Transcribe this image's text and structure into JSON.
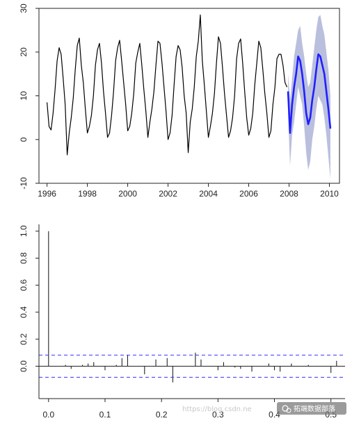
{
  "chart_data": [
    {
      "type": "line",
      "title": "",
      "xlabel": "",
      "ylabel": "",
      "xlim": [
        1995.6,
        2010.5
      ],
      "ylim": [
        -10,
        30
      ],
      "x_ticks": [
        "1996",
        "1998",
        "2000",
        "2002",
        "2004",
        "2006",
        "2008",
        "2010"
      ],
      "y_ticks": [
        "-10",
        "0",
        "10",
        "20",
        "30"
      ],
      "grid": false,
      "legend": "none",
      "series": [
        {
          "role": "observed",
          "color": "#000000",
          "x": [
            1996.0,
            1996.1,
            1996.2,
            1996.3,
            1996.4,
            1996.5,
            1996.6,
            1996.7,
            1996.8,
            1996.9,
            1997.0,
            1997.1,
            1997.2,
            1997.3,
            1997.4,
            1997.5,
            1997.6,
            1997.7,
            1997.8,
            1997.9,
            1998.0,
            1998.1,
            1998.2,
            1998.3,
            1998.4,
            1998.5,
            1998.6,
            1998.7,
            1998.8,
            1998.9,
            1999.0,
            1999.1,
            1999.2,
            1999.3,
            1999.4,
            1999.5,
            1999.6,
            1999.7,
            1999.8,
            1999.9,
            2000.0,
            2000.1,
            2000.2,
            2000.3,
            2000.4,
            2000.5,
            2000.6,
            2000.7,
            2000.8,
            2000.9,
            2001.0,
            2001.1,
            2001.2,
            2001.3,
            2001.4,
            2001.5,
            2001.6,
            2001.7,
            2001.8,
            2001.9,
            2002.0,
            2002.1,
            2002.2,
            2002.3,
            2002.4,
            2002.5,
            2002.6,
            2002.7,
            2002.8,
            2002.9,
            2003.0,
            2003.1,
            2003.2,
            2003.3,
            2003.4,
            2003.5,
            2003.6,
            2003.7,
            2003.8,
            2003.9,
            2004.0,
            2004.1,
            2004.2,
            2004.3,
            2004.4,
            2004.5,
            2004.6,
            2004.7,
            2004.8,
            2004.9,
            2005.0,
            2005.1,
            2005.2,
            2005.3,
            2005.4,
            2005.5,
            2005.6,
            2005.7,
            2005.8,
            2005.9,
            2006.0,
            2006.1,
            2006.2,
            2006.3,
            2006.4,
            2006.5,
            2006.6,
            2006.7,
            2006.8,
            2006.9,
            2007.0,
            2007.1,
            2007.2,
            2007.3,
            2007.4,
            2007.5,
            2007.6,
            2007.7,
            2007.8,
            2007.9
          ],
          "y": [
            8.5,
            3.0,
            2.2,
            6.0,
            11.5,
            18.0,
            21.0,
            19.5,
            14.0,
            8.0,
            -3.5,
            1.5,
            5.0,
            9.5,
            16.0,
            21.5,
            23.2,
            17.0,
            13.0,
            7.0,
            1.5,
            3.0,
            5.5,
            10.0,
            17.0,
            20.5,
            22.0,
            17.5,
            11.0,
            6.0,
            0.5,
            1.5,
            5.5,
            11.0,
            18.0,
            21.0,
            22.7,
            18.0,
            13.0,
            8.0,
            2.0,
            3.0,
            6.0,
            10.5,
            17.5,
            20.0,
            22.0,
            17.0,
            11.5,
            6.5,
            0.5,
            4.0,
            7.0,
            11.0,
            17.0,
            22.5,
            22.0,
            17.5,
            12.0,
            6.5,
            0.0,
            1.5,
            5.5,
            12.5,
            19.0,
            21.5,
            20.5,
            16.5,
            10.0,
            6.0,
            -3.0,
            4.0,
            7.0,
            12.0,
            19.0,
            22.5,
            28.5,
            18.0,
            12.5,
            6.5,
            0.5,
            3.0,
            6.0,
            10.5,
            17.5,
            23.5,
            22.0,
            16.5,
            10.5,
            5.5,
            0.5,
            2.0,
            5.0,
            10.0,
            18.5,
            22.0,
            23.0,
            17.5,
            11.0,
            5.0,
            1.0,
            2.5,
            6.0,
            12.5,
            17.5,
            22.5,
            21.0,
            16.0,
            10.5,
            6.0,
            0.5,
            2.0,
            8.0,
            12.0,
            18.5,
            19.5,
            19.5,
            17.0,
            13.0,
            12.0
          ]
        },
        {
          "role": "forecast",
          "color": "#1f1fff",
          "band_color": "#aeb4d8",
          "x": [
            2007.95,
            2008.05,
            2008.15,
            2008.25,
            2008.35,
            2008.45,
            2008.55,
            2008.65,
            2008.75,
            2008.85,
            2008.95,
            2009.05,
            2009.15,
            2009.25,
            2009.35,
            2009.45,
            2009.55,
            2009.65,
            2009.75,
            2009.85,
            2009.95,
            2010.05
          ],
          "y": [
            11.0,
            1.5,
            8.0,
            12.0,
            15.0,
            19.0,
            18.0,
            15.0,
            11.0,
            6.0,
            3.5,
            5.0,
            9.0,
            12.0,
            16.0,
            19.5,
            19.0,
            17.0,
            15.0,
            11.0,
            7.0,
            2.5
          ],
          "upper": [
            15.0,
            9.0,
            14.0,
            19.0,
            22.0,
            25.0,
            26.0,
            22.0,
            19.0,
            15.0,
            12.0,
            13.0,
            17.0,
            21.0,
            25.0,
            28.0,
            28.5,
            26.0,
            24.0,
            20.0,
            16.0,
            10.0
          ],
          "lower": [
            6.0,
            -6.0,
            1.0,
            4.0,
            8.0,
            12.0,
            10.0,
            8.0,
            3.0,
            -3.0,
            -7.0,
            -5.0,
            0.0,
            3.0,
            7.0,
            10.0,
            9.0,
            8.0,
            5.0,
            1.0,
            -4.0,
            -9.0
          ]
        }
      ]
    },
    {
      "type": "bar",
      "title": "",
      "xlabel": "",
      "ylabel": "",
      "xlim": [
        -0.017,
        0.525
      ],
      "ylim": [
        -0.24,
        1.05
      ],
      "x_ticks": [
        "0.0",
        "0.1",
        "0.2",
        "0.3",
        "0.4",
        "0.5"
      ],
      "y_ticks": [
        "0.0",
        "0.2",
        "0.4",
        "0.6",
        "0.8",
        "1.0"
      ],
      "confidence_bound": 0.082,
      "confidence_color": "#3333ff",
      "grid": false,
      "legend": "none",
      "x": [
        0.0,
        0.01,
        0.02,
        0.03,
        0.04,
        0.05,
        0.06,
        0.07,
        0.08,
        0.09,
        0.1,
        0.11,
        0.12,
        0.13,
        0.14,
        0.15,
        0.16,
        0.17,
        0.18,
        0.19,
        0.2,
        0.21,
        0.22,
        0.23,
        0.24,
        0.25,
        0.26,
        0.27,
        0.28,
        0.29,
        0.3,
        0.31,
        0.32,
        0.33,
        0.34,
        0.35,
        0.36,
        0.37,
        0.38,
        0.39,
        0.4,
        0.41,
        0.42,
        0.43,
        0.44,
        0.45,
        0.46,
        0.47,
        0.48,
        0.49,
        0.5,
        0.51
      ],
      "values": [
        1.0,
        0.0,
        0.0,
        0.01,
        -0.02,
        0.0,
        0.01,
        0.02,
        0.03,
        0.0,
        -0.03,
        0.0,
        0.01,
        0.06,
        0.08,
        0.0,
        0.0,
        -0.06,
        0.0,
        0.05,
        0.0,
        0.06,
        -0.12,
        0.0,
        0.0,
        0.0,
        0.1,
        0.05,
        0.0,
        0.0,
        -0.03,
        0.03,
        0.0,
        -0.01,
        -0.02,
        0.0,
        -0.04,
        0.0,
        0.0,
        0.02,
        -0.03,
        -0.04,
        0.0,
        0.02,
        0.0,
        0.0,
        0.01,
        0.0,
        0.0,
        0.0,
        -0.05,
        0.04
      ]
    }
  ],
  "watermark": {
    "url_text": "https://blog.csdn.ne",
    "brand_text": "拓端数据部落"
  }
}
